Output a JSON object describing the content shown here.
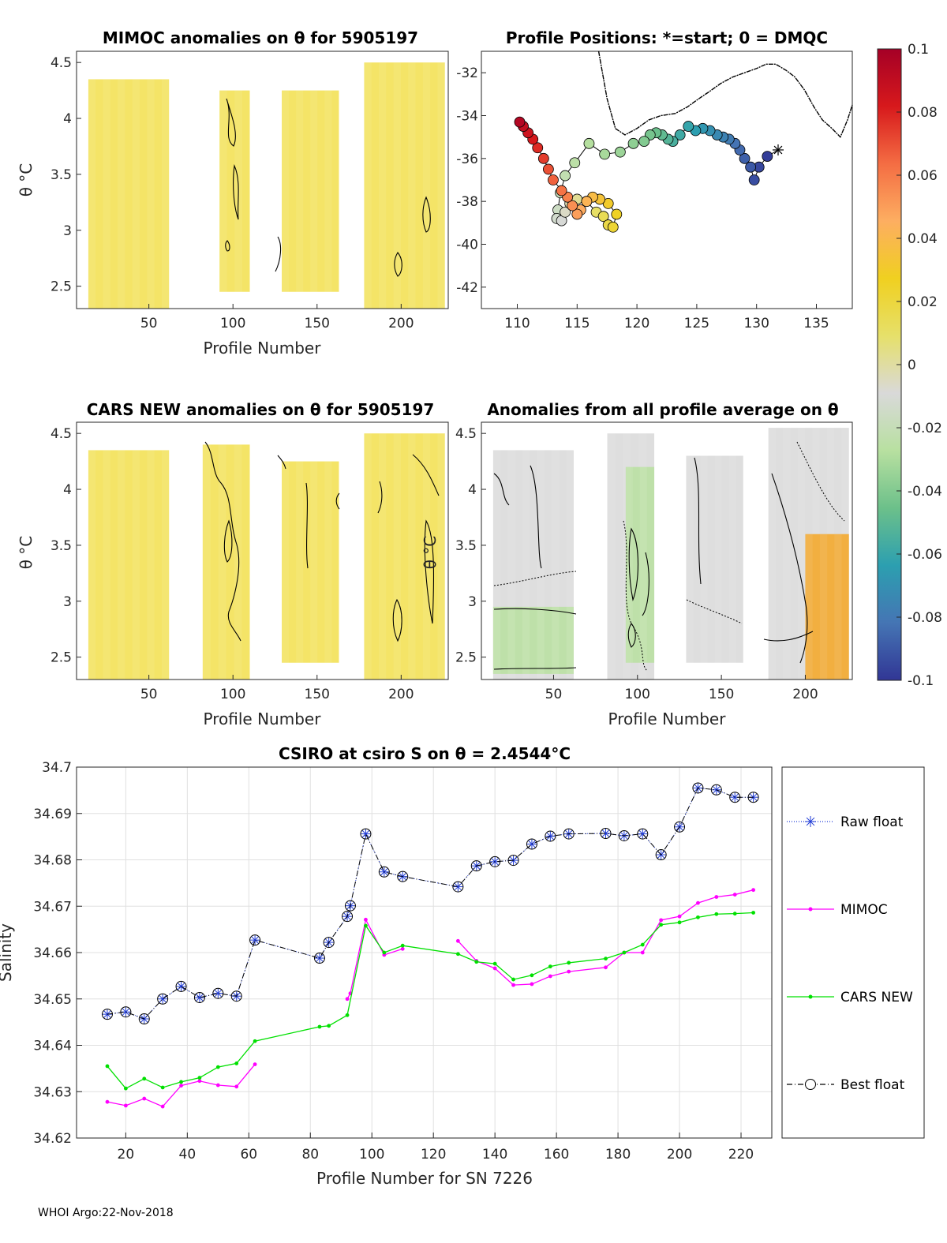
{
  "colors": {
    "raw": "#1f3bd6",
    "mimoc": "#ff00ff",
    "cars": "#00e000",
    "best": "#000000",
    "blank": "#ffffff",
    "anomaly_yellow": "#f2df4c",
    "anomaly_grey": "#d8d8d8",
    "anomaly_green": "#b8e0a0",
    "anomaly_orange": "#f4a623"
  },
  "panels": {
    "mimoc": {
      "title": "MIMOC anomalies on θ  for 5905197",
      "ylabel": "θ °C",
      "xlabel": "Profile Number"
    },
    "positions": {
      "title": "Profile Positions: *=start; 0 = DMQC"
    },
    "cars": {
      "title": "CARS NEW anomalies on θ for 5905197",
      "ylabel": "θ °C",
      "xlabel": "Profile Number",
      "overlay_label": "θ °C"
    },
    "all": {
      "title": "Anomalies from all profile average on θ",
      "xlabel": "Profile Number"
    }
  },
  "footer": "WHOI Argo:22-Nov-2018",
  "colorbar": {
    "ticks": [
      "0.1",
      "0.08",
      "0.06",
      "0.04",
      "0.02",
      "0",
      "-0.02",
      "-0.04",
      "-0.06",
      "-0.08",
      "-0.1"
    ],
    "stops": [
      "#a50026",
      "#d7191c",
      "#f46d43",
      "#fdae61",
      "#f0d020",
      "#e6e06a",
      "#d9d9d9",
      "#b8e0a0",
      "#6cc08a",
      "#2c9fb0",
      "#4575b4",
      "#313695"
    ]
  },
  "chart_data": [
    {
      "type": "heatmap",
      "title": "MIMOC anomalies on θ  for 5905197",
      "xlabel": "Profile Number",
      "ylabel": "θ °C",
      "xlim": [
        7,
        228
      ],
      "ylim": [
        2.3,
        4.6
      ],
      "xticks": [
        "50",
        "100",
        "150",
        "200"
      ],
      "yticks": [
        "4.5",
        "4",
        "3.5",
        "3",
        "2.5"
      ],
      "data_blocks": [
        {
          "x": [
            14,
            62
          ],
          "y": [
            2.3,
            4.35
          ],
          "fill": "anomaly_yellow",
          "level": 0.02
        },
        {
          "x": [
            92,
            110
          ],
          "y": [
            2.45,
            4.25
          ],
          "fill": "anomaly_yellow",
          "level": 0.03
        },
        {
          "x": [
            129,
            163
          ],
          "y": [
            2.45,
            4.25
          ],
          "fill": "anomaly_yellow",
          "level": 0.03
        },
        {
          "x": [
            178,
            226
          ],
          "y": [
            2.3,
            4.5
          ],
          "fill": "anomaly_yellow",
          "level": 0.03
        }
      ]
    },
    {
      "type": "scatter",
      "title": "Profile Positions: *=start; 0 = DMQC",
      "xlim": [
        107,
        138
      ],
      "ylim": [
        -43,
        -31
      ],
      "xticks": [
        "110",
        "115",
        "120",
        "125",
        "130",
        "135"
      ],
      "yticks": [
        "-32",
        "-34",
        "-36",
        "-38",
        "-40",
        "-42"
      ],
      "lon": [
        131.8,
        130.9,
        130.2,
        129.8,
        129.5,
        129.0,
        128.6,
        128.2,
        127.7,
        127.2,
        126.7,
        126.1,
        125.5,
        124.9,
        124.3,
        123.6,
        123.0,
        122.6,
        122.1,
        121.6,
        121.1,
        120.6,
        119.7,
        118.6,
        117.3,
        116.0,
        114.8,
        114.0,
        113.6,
        113.4,
        113.3,
        113.7,
        114.0,
        114.4,
        115.0,
        115.8,
        116.6,
        117.2,
        117.6,
        118.0,
        118.3,
        117.6,
        116.9,
        116.3,
        115.8,
        115.3,
        115.0,
        114.6,
        114.2,
        113.7,
        113.0,
        112.6,
        112.2,
        111.7,
        111.3,
        110.9,
        110.5,
        110.2
      ],
      "lat": [
        -35.6,
        -35.9,
        -36.4,
        -37.0,
        -36.4,
        -36.0,
        -35.6,
        -35.3,
        -35.1,
        -35.0,
        -34.9,
        -34.7,
        -34.6,
        -34.7,
        -34.5,
        -34.9,
        -35.2,
        -35.1,
        -34.9,
        -34.8,
        -34.9,
        -35.2,
        -35.3,
        -35.7,
        -35.8,
        -35.3,
        -36.2,
        -36.8,
        -37.6,
        -38.4,
        -38.8,
        -38.9,
        -38.5,
        -38.1,
        -37.9,
        -38.0,
        -38.5,
        -38.7,
        -39.1,
        -39.2,
        -38.6,
        -38.1,
        -37.9,
        -37.8,
        -38.0,
        -38.4,
        -38.6,
        -38.2,
        -37.8,
        -37.5,
        -37.0,
        -36.5,
        -36.0,
        -35.5,
        -35.1,
        -34.8,
        -34.5,
        -34.3
      ],
      "color_value": [
        -0.1,
        -0.098,
        -0.095,
        -0.093,
        -0.09,
        -0.088,
        -0.085,
        -0.082,
        -0.079,
        -0.076,
        -0.073,
        -0.07,
        -0.067,
        -0.064,
        -0.061,
        -0.058,
        -0.055,
        -0.052,
        -0.049,
        -0.046,
        -0.043,
        -0.04,
        -0.037,
        -0.034,
        -0.031,
        -0.028,
        -0.025,
        -0.022,
        -0.019,
        -0.016,
        -0.013,
        -0.01,
        -0.006,
        -0.002,
        0.002,
        0.006,
        0.01,
        0.014,
        0.018,
        0.022,
        0.026,
        0.03,
        0.034,
        0.038,
        0.042,
        0.046,
        0.05,
        0.054,
        0.058,
        0.062,
        0.066,
        0.07,
        0.074,
        0.078,
        0.082,
        0.086,
        0.09,
        0.095
      ],
      "coastline_lon": [
        116.8,
        117.5,
        118.2,
        119.0,
        120.0,
        121.0,
        122.0,
        123.2,
        124.2,
        125.2,
        126.0,
        127.0,
        128.0,
        129.0,
        130.0,
        130.8,
        131.6,
        132.5,
        133.2,
        134.0,
        134.8,
        135.5,
        136.3,
        137.0,
        137.6,
        138.0
      ],
      "coastline_lat": [
        -31.0,
        -33.2,
        -34.6,
        -34.9,
        -34.6,
        -34.2,
        -34.0,
        -33.9,
        -33.6,
        -33.2,
        -32.9,
        -32.5,
        -32.2,
        -32.0,
        -31.8,
        -31.6,
        -31.6,
        -31.9,
        -32.2,
        -32.8,
        -33.6,
        -34.2,
        -34.6,
        -35.0,
        -34.2,
        -33.5
      ]
    },
    {
      "type": "heatmap",
      "title": "CARS NEW anomalies on θ for 5905197",
      "xlabel": "Profile Number",
      "ylabel": "θ °C",
      "xlim": [
        7,
        228
      ],
      "ylim": [
        2.3,
        4.6
      ],
      "xticks": [
        "50",
        "100",
        "150",
        "200"
      ],
      "yticks": [
        "4.5",
        "4",
        "3.5",
        "3",
        "2.5"
      ],
      "data_blocks": [
        {
          "x": [
            14,
            62
          ],
          "y": [
            2.3,
            4.35
          ],
          "fill": "anomaly_yellow",
          "level": 0.02
        },
        {
          "x": [
            82,
            110
          ],
          "y": [
            2.3,
            4.4
          ],
          "fill": "anomaly_yellow",
          "level": 0.02
        },
        {
          "x": [
            129,
            163
          ],
          "y": [
            2.45,
            4.25
          ],
          "fill": "anomaly_yellow",
          "level": 0.03
        },
        {
          "x": [
            178,
            226
          ],
          "y": [
            2.3,
            4.5
          ],
          "fill": "anomaly_yellow",
          "level": 0.02
        }
      ]
    },
    {
      "type": "heatmap",
      "title": "Anomalies from all profile average on θ",
      "xlabel": "Profile Number",
      "xlim": [
        7,
        228
      ],
      "ylim": [
        2.3,
        4.6
      ],
      "xticks": [
        "50",
        "100",
        "150",
        "200"
      ],
      "yticks": [
        "4.5",
        "4",
        "3.5",
        "3",
        "2.5"
      ],
      "data_blocks": [
        {
          "x": [
            14,
            62
          ],
          "y": [
            2.3,
            4.35
          ],
          "fill": "anomaly_grey",
          "level": 0.0
        },
        {
          "x": [
            14,
            62
          ],
          "y": [
            2.35,
            2.95
          ],
          "fill": "anomaly_green",
          "level": -0.02
        },
        {
          "x": [
            82,
            110
          ],
          "y": [
            2.3,
            4.5
          ],
          "fill": "anomaly_grey",
          "level": 0.0
        },
        {
          "x": [
            93,
            110
          ],
          "y": [
            2.45,
            4.2
          ],
          "fill": "anomaly_green",
          "level": -0.01
        },
        {
          "x": [
            129,
            163
          ],
          "y": [
            2.45,
            4.3
          ],
          "fill": "anomaly_grey",
          "level": 0.0
        },
        {
          "x": [
            178,
            226
          ],
          "y": [
            2.3,
            4.55
          ],
          "fill": "anomaly_grey",
          "level": 0.0
        },
        {
          "x": [
            200,
            226
          ],
          "y": [
            2.3,
            3.6
          ],
          "fill": "anomaly_orange",
          "level": 0.05
        }
      ]
    },
    {
      "type": "line",
      "title": "CSIRO at csiro S on θ = 2.4544°C",
      "xlabel": "Profile Number for SN 7226",
      "ylabel": "Salinity",
      "xlim": [
        4,
        230
      ],
      "ylim": [
        34.62,
        34.7
      ],
      "xticks": [
        "20",
        "40",
        "60",
        "80",
        "100",
        "120",
        "140",
        "160",
        "180",
        "200",
        "220"
      ],
      "yticks": [
        "34.7",
        "34.69",
        "34.68",
        "34.67",
        "34.66",
        "34.65",
        "34.64",
        "34.63",
        "34.62"
      ],
      "legend_position": "outside-right",
      "series": [
        {
          "name": "Raw float",
          "key": "raw",
          "x": [
            14,
            20,
            26,
            32,
            38,
            44,
            50,
            56,
            62,
            83,
            86,
            92,
            93,
            98,
            104,
            110,
            128,
            134,
            140,
            146,
            152,
            158,
            164,
            176,
            182,
            188,
            194,
            200,
            206,
            212,
            218,
            224
          ],
          "y": [
            34.6467,
            34.6472,
            34.6457,
            34.65,
            34.6527,
            34.6503,
            34.6512,
            34.6506,
            34.6627,
            34.6588,
            34.6622,
            34.6678,
            34.6701,
            34.6856,
            34.6774,
            34.6764,
            34.6742,
            34.6787,
            34.6796,
            34.6799,
            34.6834,
            34.6851,
            34.6856,
            34.6857,
            34.6852,
            34.6856,
            34.6811,
            34.6871,
            34.6955,
            34.6951,
            34.6935,
            34.6935
          ]
        },
        {
          "name": "MIMOC",
          "key": "mimoc",
          "x": [
            14,
            20,
            26,
            32,
            38,
            44,
            50,
            56,
            62,
            92,
            93,
            98,
            104,
            110,
            128,
            134,
            140,
            146,
            152,
            158,
            164,
            176,
            182,
            188,
            194,
            200,
            206,
            212,
            218,
            224
          ],
          "y": [
            34.6278,
            34.627,
            34.6285,
            34.6268,
            34.6313,
            34.6323,
            34.6314,
            34.6311,
            34.6359,
            34.65,
            34.6512,
            34.6671,
            34.6595,
            34.6608,
            34.6625,
            34.6582,
            34.6566,
            34.653,
            34.6532,
            34.6549,
            34.6559,
            34.6568,
            34.66,
            34.66,
            34.667,
            34.6678,
            34.6707,
            34.672,
            34.6725,
            34.6735
          ]
        },
        {
          "name": "CARS NEW",
          "key": "cars",
          "x": [
            14,
            20,
            26,
            32,
            38,
            44,
            50,
            56,
            62,
            83,
            86,
            92,
            98,
            104,
            110,
            128,
            134,
            140,
            146,
            152,
            158,
            164,
            176,
            182,
            188,
            194,
            200,
            206,
            212,
            218,
            224
          ],
          "y": [
            34.6355,
            34.6307,
            34.6328,
            34.6309,
            34.6321,
            34.633,
            34.6353,
            34.6361,
            34.6409,
            34.644,
            34.6442,
            34.6465,
            34.6658,
            34.66,
            34.6615,
            34.6597,
            34.658,
            34.6576,
            34.6542,
            34.6551,
            34.657,
            34.6578,
            34.6587,
            34.66,
            34.6617,
            34.666,
            34.6665,
            34.6676,
            34.6683,
            34.6684,
            34.6686
          ]
        },
        {
          "name": "Best float",
          "key": "best",
          "x": [
            14,
            20,
            26,
            32,
            38,
            44,
            50,
            56,
            62,
            83,
            86,
            92,
            93,
            98,
            104,
            110,
            128,
            134,
            140,
            146,
            152,
            158,
            164,
            176,
            182,
            188,
            194,
            200,
            206,
            212,
            218,
            224
          ],
          "y": [
            34.6467,
            34.6472,
            34.6457,
            34.65,
            34.6527,
            34.6503,
            34.6512,
            34.6506,
            34.6627,
            34.6588,
            34.6622,
            34.6678,
            34.6701,
            34.6856,
            34.6774,
            34.6764,
            34.6742,
            34.6787,
            34.6796,
            34.6799,
            34.6834,
            34.6851,
            34.6856,
            34.6857,
            34.6852,
            34.6856,
            34.6811,
            34.6871,
            34.6955,
            34.6951,
            34.6935,
            34.6935
          ]
        }
      ]
    }
  ]
}
